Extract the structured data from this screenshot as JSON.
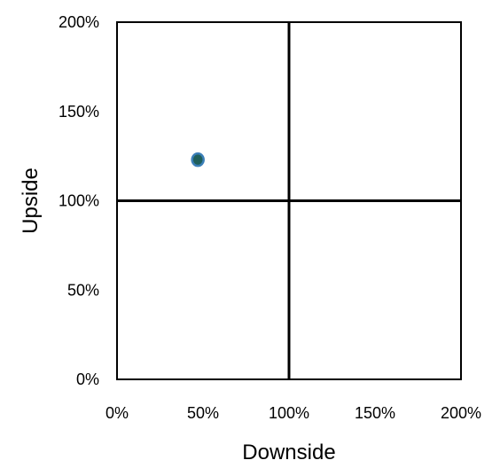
{
  "chart_data": {
    "type": "scatter",
    "title": "",
    "xlabel": "Downside",
    "ylabel": "Upside",
    "xlim": [
      0,
      200
    ],
    "ylim": [
      0,
      200
    ],
    "x_ticks": [
      0,
      50,
      100,
      150,
      200
    ],
    "y_ticks": [
      0,
      50,
      100,
      150,
      200
    ],
    "x_tick_labels": [
      "0%",
      "50%",
      "100%",
      "150%",
      "200%"
    ],
    "y_tick_labels": [
      "0%",
      "50%",
      "100%",
      "150%",
      "200%"
    ],
    "grid": false,
    "reference_lines": {
      "x": 100,
      "y": 100
    },
    "series": [
      {
        "points": [
          {
            "x": 47,
            "y": 123
          }
        ]
      }
    ],
    "colors": {
      "point_fill": "#1f5f5b",
      "point_stroke": "#3b7fb8",
      "axis": "#000000",
      "text": "#000000"
    }
  }
}
